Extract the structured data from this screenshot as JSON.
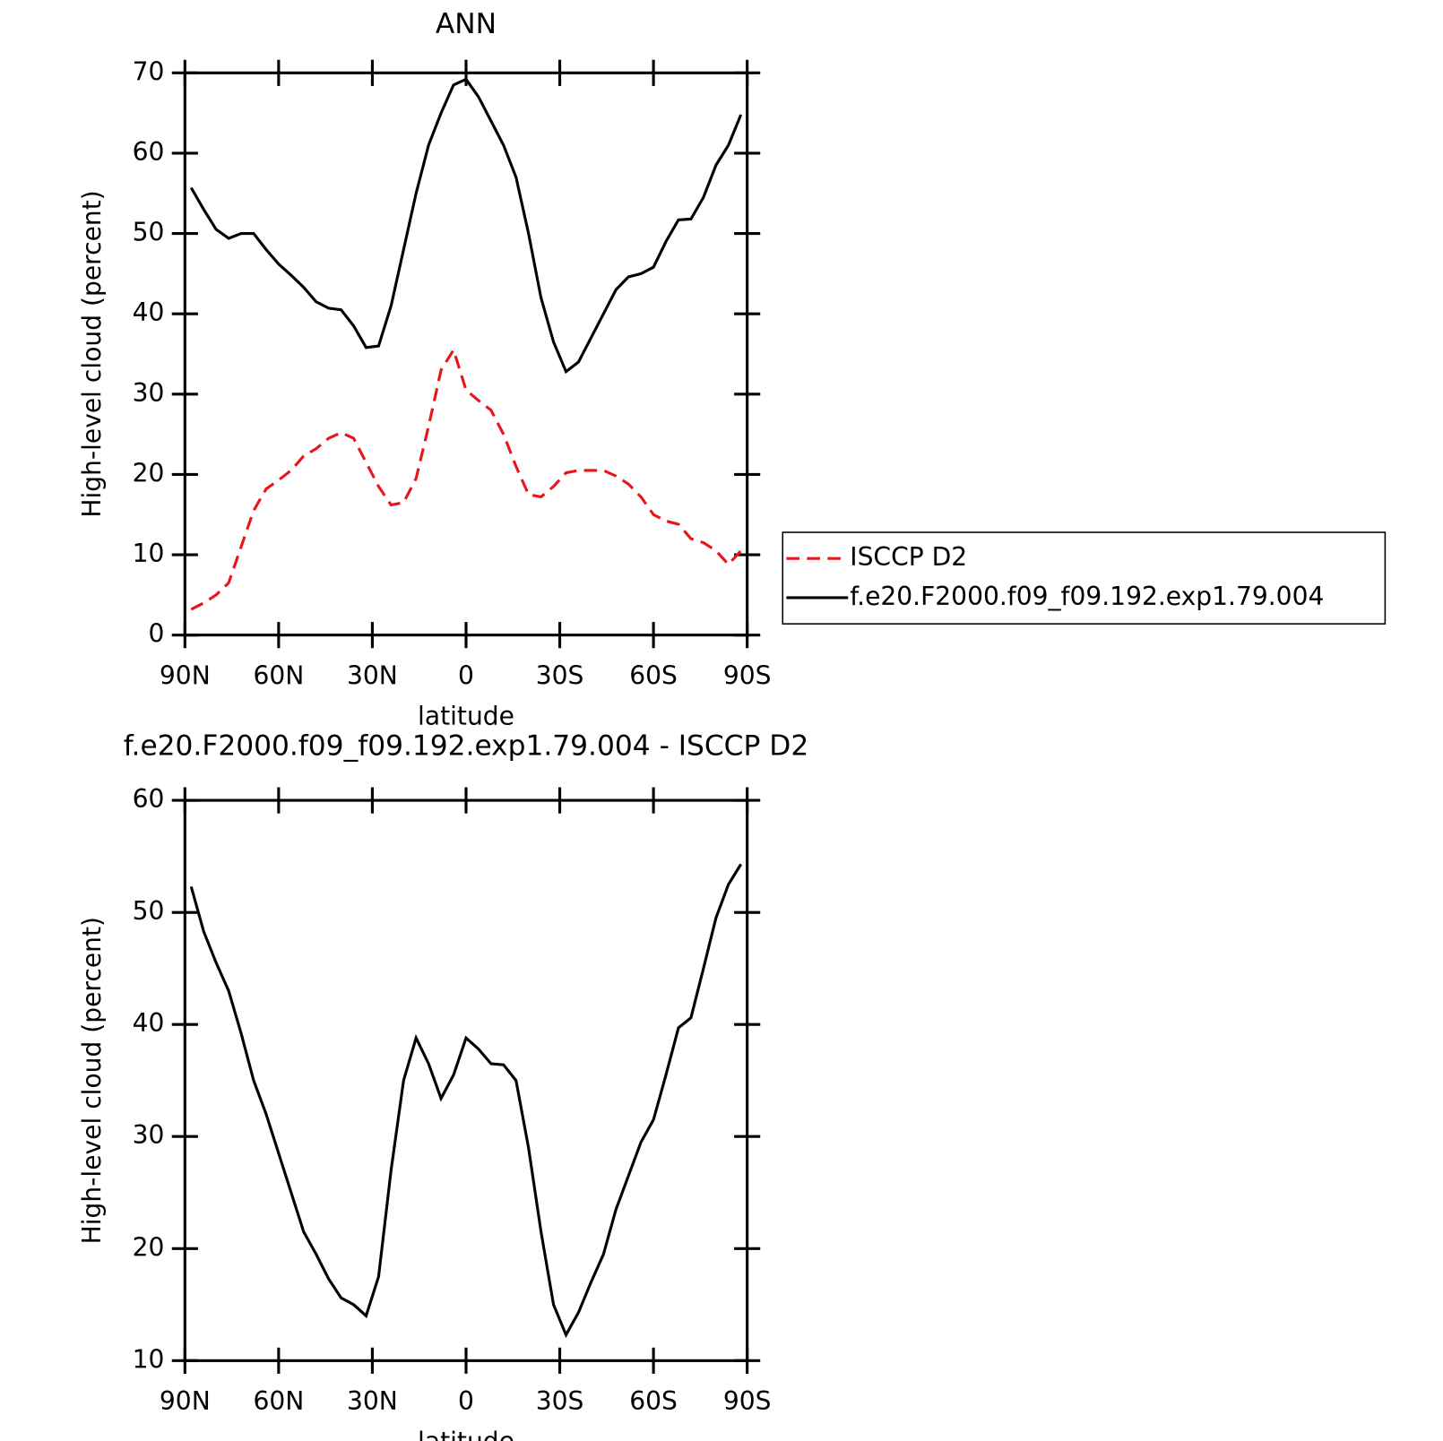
{
  "chart_data": [
    {
      "type": "line",
      "title": "ANN",
      "xlabel": "latitude",
      "ylabel": "High-level cloud (percent)",
      "xlim": [
        90,
        -90
      ],
      "ylim": [
        0,
        70
      ],
      "xticks": [
        {
          "value": 90,
          "label": "90N"
        },
        {
          "value": 60,
          "label": "60N"
        },
        {
          "value": 30,
          "label": "30N"
        },
        0,
        {
          "value": -30,
          "label": "30S"
        },
        {
          "value": -60,
          "label": "60S"
        },
        {
          "value": -90,
          "label": "90S"
        }
      ],
      "yticks": [
        0,
        10,
        20,
        30,
        40,
        50,
        60,
        70
      ],
      "x": [
        88,
        84,
        80,
        76,
        72,
        68,
        64,
        60,
        56,
        52,
        48,
        44,
        40,
        36,
        32,
        28,
        24,
        20,
        16,
        12,
        8,
        4,
        0,
        -4,
        -8,
        -12,
        -16,
        -20,
        -24,
        -28,
        -32,
        -36,
        -40,
        -44,
        -48,
        -52,
        -56,
        -60,
        -64,
        -68,
        -72,
        -76,
        -80,
        -84,
        -88
      ],
      "series": [
        {
          "name": "ISCCP D2",
          "color": "#e8151b",
          "dash": true,
          "values": [
            3.2,
            4.0,
            5.0,
            6.5,
            11,
            15.5,
            18.2,
            19.3,
            20.5,
            22.3,
            23.2,
            24.5,
            25.2,
            24.5,
            21.5,
            18.5,
            16.2,
            16.5,
            19.5,
            26,
            33,
            35.5,
            30.5,
            29.2,
            28,
            25,
            21,
            17.5,
            17.2,
            18.5,
            20.2,
            20.5,
            20.5,
            20.5,
            19.8,
            18.8,
            17.2,
            15,
            14.2,
            13.8,
            12.0,
            11.5,
            10.5,
            8.8,
            10.5
          ]
        },
        {
          "name": "f.e20.F2000.f09_f09.192.exp1.79.004",
          "color": "#000000",
          "dash": false,
          "values": [
            55.7,
            53,
            50.5,
            49.4,
            50.0,
            50.0,
            48,
            46.2,
            44.8,
            43.3,
            41.5,
            40.7,
            40.5,
            38.5,
            35.8,
            36.0,
            41,
            48,
            55,
            61,
            65,
            68.5,
            69.2,
            67,
            64,
            61,
            57,
            50,
            42,
            36.5,
            32.8,
            34,
            37,
            40,
            43,
            44.6,
            45.0,
            45.8,
            49,
            51.7,
            51.8,
            54.5,
            58.5,
            61,
            64.8
          ]
        }
      ]
    },
    {
      "type": "line",
      "title": "f.e20.F2000.f09_f09.192.exp1.79.004 - ISCCP D2",
      "xlabel": "latitude",
      "ylabel": "High-level cloud (percent)",
      "xlim": [
        90,
        -90
      ],
      "ylim": [
        10,
        60
      ],
      "xticks": [
        {
          "value": 90,
          "label": "90N"
        },
        {
          "value": 60,
          "label": "60N"
        },
        {
          "value": 30,
          "label": "30N"
        },
        0,
        {
          "value": -30,
          "label": "30S"
        },
        {
          "value": -60,
          "label": "60S"
        },
        {
          "value": -90,
          "label": "90S"
        }
      ],
      "yticks": [
        10,
        20,
        30,
        40,
        50,
        60
      ],
      "x": [
        88,
        84,
        80,
        76,
        72,
        68,
        64,
        60,
        56,
        52,
        48,
        44,
        40,
        36,
        32,
        28,
        24,
        20,
        16,
        12,
        8,
        4,
        0,
        -4,
        -8,
        -12,
        -16,
        -20,
        -24,
        -28,
        -32,
        -36,
        -40,
        -44,
        -48,
        -52,
        -56,
        -60,
        -64,
        -68,
        -72,
        -76,
        -80,
        -84,
        -88
      ],
      "series": [
        {
          "color": "#000000",
          "dash": false,
          "values": [
            52.3,
            48.3,
            45.5,
            43,
            39.2,
            35,
            32,
            28.5,
            25,
            21.5,
            19.5,
            17.3,
            15.6,
            15,
            14,
            17.5,
            27,
            35,
            38.8,
            36.5,
            33.4,
            35.5,
            38.8,
            37.8,
            36.5,
            36.4,
            35,
            29,
            21.5,
            15,
            12.3,
            14.3,
            17,
            19.5,
            23.5,
            26.5,
            29.5,
            31.5,
            35.5,
            39.7,
            40.6,
            45,
            49.5,
            52.5,
            54.3
          ]
        }
      ]
    }
  ]
}
